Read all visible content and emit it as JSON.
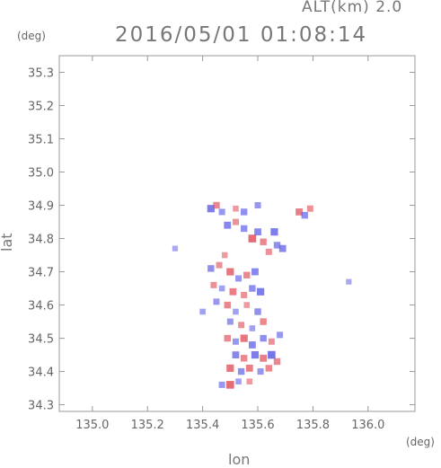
{
  "header": {
    "altitude_label": "ALT(km) 2.0",
    "datetime": "2016/05/01 01:08:14"
  },
  "chart_data": {
    "type": "heatmap",
    "title": "2016/05/01 01:08:14",
    "xlabel": "lon",
    "ylabel": "lat",
    "x_unit": "(deg)",
    "y_unit": "(deg)",
    "xlim": [
      134.88,
      136.17
    ],
    "ylim": [
      34.28,
      35.35
    ],
    "x_ticks": [
      135.0,
      135.2,
      135.4,
      135.6,
      135.8,
      136.0
    ],
    "x_tick_labels": [
      "135.0",
      "135.2",
      "135.4",
      "135.6",
      "135.8",
      "136.0"
    ],
    "y_ticks": [
      34.3,
      34.4,
      34.5,
      34.6,
      34.7,
      34.8,
      34.9,
      35.0,
      35.1,
      35.2,
      35.3
    ],
    "y_tick_labels": [
      "34.3",
      "34.4",
      "34.5",
      "34.6",
      "34.7",
      "34.8",
      "34.9",
      "35.0",
      "35.1",
      "35.2",
      "35.3"
    ],
    "grid": false,
    "colors": {
      "positive": "#e0505a",
      "negative": "#5a5ae6",
      "axis": "#999999"
    },
    "points": [
      [
        135.43,
        34.89,
        -0.8
      ],
      [
        135.45,
        34.9,
        0.6
      ],
      [
        135.47,
        34.88,
        -0.5
      ],
      [
        135.52,
        34.89,
        0.4
      ],
      [
        135.55,
        34.88,
        -0.6
      ],
      [
        135.6,
        34.9,
        -0.5
      ],
      [
        135.75,
        34.88,
        0.7
      ],
      [
        135.77,
        34.87,
        -0.6
      ],
      [
        135.79,
        34.89,
        0.5
      ],
      [
        135.49,
        34.84,
        -0.7
      ],
      [
        135.52,
        34.85,
        0.5
      ],
      [
        135.55,
        34.83,
        -0.6
      ],
      [
        135.58,
        34.8,
        0.9
      ],
      [
        135.6,
        34.82,
        -0.7
      ],
      [
        135.62,
        34.79,
        0.6
      ],
      [
        135.66,
        34.82,
        -0.8
      ],
      [
        135.67,
        34.78,
        -0.6
      ],
      [
        135.64,
        34.76,
        0.5
      ],
      [
        135.69,
        34.77,
        -0.7
      ],
      [
        135.48,
        34.75,
        0.4
      ],
      [
        135.3,
        34.77,
        -0.3
      ],
      [
        135.43,
        34.71,
        -0.6
      ],
      [
        135.46,
        34.72,
        0.5
      ],
      [
        135.5,
        34.7,
        0.8
      ],
      [
        135.53,
        34.68,
        -0.5
      ],
      [
        135.56,
        34.69,
        0.6
      ],
      [
        135.59,
        34.7,
        -0.7
      ],
      [
        135.44,
        34.66,
        0.5
      ],
      [
        135.47,
        34.65,
        -0.4
      ],
      [
        135.51,
        34.64,
        0.7
      ],
      [
        135.55,
        34.63,
        0.5
      ],
      [
        135.58,
        34.65,
        -0.6
      ],
      [
        135.61,
        34.64,
        -0.8
      ],
      [
        135.45,
        34.61,
        -0.5
      ],
      [
        135.49,
        34.6,
        0.6
      ],
      [
        135.52,
        34.58,
        -0.4
      ],
      [
        135.56,
        34.6,
        0.4
      ],
      [
        135.6,
        34.58,
        -0.6
      ],
      [
        135.5,
        34.55,
        -0.5
      ],
      [
        135.54,
        34.54,
        0.5
      ],
      [
        135.58,
        34.53,
        -0.4
      ],
      [
        135.62,
        34.55,
        0.6
      ],
      [
        135.49,
        34.5,
        0.6
      ],
      [
        135.52,
        34.49,
        -0.5
      ],
      [
        135.55,
        34.5,
        0.8
      ],
      [
        135.58,
        34.48,
        -0.7
      ],
      [
        135.62,
        34.5,
        -0.6
      ],
      [
        135.65,
        34.49,
        0.5
      ],
      [
        135.68,
        34.51,
        -0.5
      ],
      [
        135.52,
        34.45,
        -0.7
      ],
      [
        135.55,
        34.44,
        0.6
      ],
      [
        135.59,
        34.45,
        -0.8
      ],
      [
        135.62,
        34.44,
        0.7
      ],
      [
        135.65,
        34.45,
        -0.9
      ],
      [
        135.67,
        34.43,
        0.6
      ],
      [
        135.5,
        34.41,
        0.8
      ],
      [
        135.54,
        34.4,
        -0.6
      ],
      [
        135.57,
        34.41,
        0.7
      ],
      [
        135.61,
        34.4,
        -0.5
      ],
      [
        135.64,
        34.41,
        0.6
      ],
      [
        135.47,
        34.36,
        -0.5
      ],
      [
        135.5,
        34.36,
        0.9
      ],
      [
        135.53,
        34.37,
        -0.4
      ],
      [
        135.57,
        34.37,
        0.4
      ],
      [
        135.93,
        34.67,
        -0.3
      ],
      [
        135.4,
        34.58,
        -0.4
      ]
    ]
  }
}
